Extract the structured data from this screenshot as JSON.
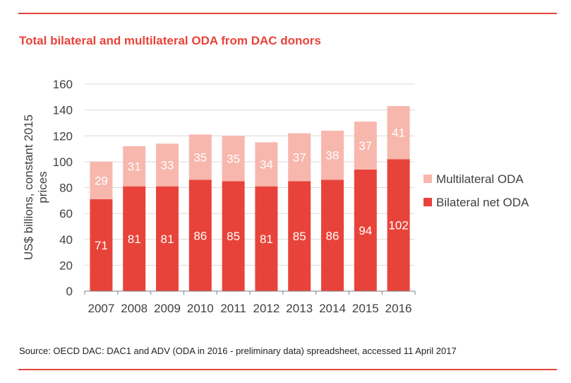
{
  "colors": {
    "accent": "#e8433a",
    "bilateral": "#e8433a",
    "multilateral": "#f7b7ad",
    "axis_text": "#404040",
    "grid": "#d9d9d9",
    "axis_line": "#7f7f7f"
  },
  "source": "Source: OECD DAC: DAC1 and ADV (ODA in 2016 - preliminary data) spreadsheet, accessed 11 April 2017",
  "chart_data": {
    "type": "bar",
    "stacked": true,
    "title": "Total bilateral and multilateral ODA from DAC donors",
    "ylabel": "US$ billions, constant 2015 prices",
    "xlabel": "",
    "ylim": [
      0,
      160
    ],
    "yticks": [
      0,
      20,
      40,
      60,
      80,
      100,
      120,
      140,
      160
    ],
    "grid": true,
    "legend_position": "right",
    "categories": [
      "2007",
      "2008",
      "2009",
      "2010",
      "2011",
      "2012",
      "2013",
      "2014",
      "2015",
      "2016"
    ],
    "series": [
      {
        "name": "Bilateral net ODA",
        "values": [
          71,
          81,
          81,
          86,
          85,
          81,
          85,
          86,
          94,
          102
        ]
      },
      {
        "name": "Multilateral ODA",
        "values": [
          29,
          31,
          33,
          35,
          35,
          34,
          37,
          38,
          37,
          41
        ]
      }
    ]
  }
}
